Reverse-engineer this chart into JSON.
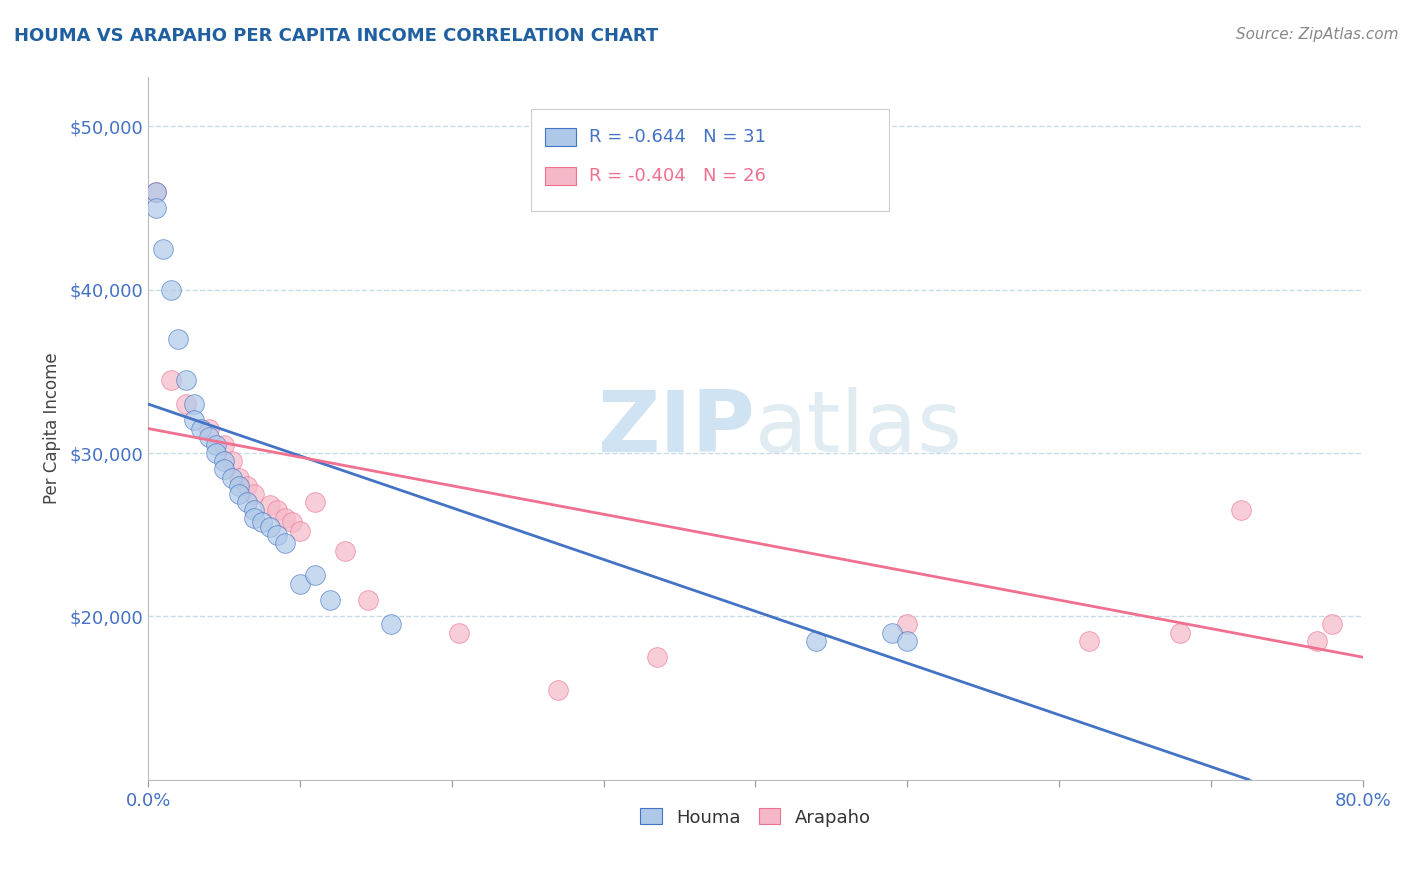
{
  "title": "HOUMA VS ARAPAHO PER CAPITA INCOME CORRELATION CHART",
  "source": "Source: ZipAtlas.com",
  "ylabel": "Per Capita Income",
  "xlim": [
    0.0,
    0.8
  ],
  "ylim": [
    10000,
    53000
  ],
  "yticks": [
    20000,
    30000,
    40000,
    50000
  ],
  "ytick_labels": [
    "$20,000",
    "$30,000",
    "$40,000",
    "$50,000"
  ],
  "houma_color": "#aec9e8",
  "arapaho_color": "#f5b8c8",
  "houma_line_color": "#4472c4",
  "arapaho_line_color": "#f07090",
  "legend_R_houma": "R = -0.644",
  "legend_N_houma": "N = 31",
  "legend_R_arapaho": "R = -0.404",
  "legend_N_arapaho": "N = 26",
  "houma_x": [
    0.005,
    0.005,
    0.01,
    0.015,
    0.02,
    0.025,
    0.03,
    0.03,
    0.035,
    0.04,
    0.045,
    0.045,
    0.05,
    0.05,
    0.055,
    0.06,
    0.06,
    0.065,
    0.07,
    0.07,
    0.075,
    0.08,
    0.085,
    0.09,
    0.1,
    0.11,
    0.12,
    0.16,
    0.44,
    0.49,
    0.5
  ],
  "houma_y": [
    46000,
    45000,
    42500,
    40000,
    37000,
    34500,
    33000,
    32000,
    31500,
    31000,
    30500,
    30000,
    29500,
    29000,
    28500,
    28000,
    27500,
    27000,
    26500,
    26000,
    25800,
    25500,
    25000,
    24500,
    22000,
    22500,
    21000,
    19500,
    18500,
    19000,
    18500
  ],
  "arapaho_x": [
    0.005,
    0.015,
    0.025,
    0.04,
    0.05,
    0.055,
    0.06,
    0.065,
    0.07,
    0.08,
    0.085,
    0.09,
    0.095,
    0.1,
    0.11,
    0.13,
    0.145,
    0.205,
    0.27,
    0.335,
    0.5,
    0.62,
    0.68,
    0.72,
    0.77,
    0.78
  ],
  "arapaho_y": [
    46000,
    34500,
    33000,
    31500,
    30500,
    29500,
    28500,
    28000,
    27500,
    26800,
    26500,
    26000,
    25800,
    25200,
    27000,
    24000,
    21000,
    19000,
    15500,
    17500,
    19500,
    18500,
    19000,
    26500,
    18500,
    19500
  ],
  "houma_trend_x0": 0.0,
  "houma_trend_y0": 33000,
  "houma_trend_x1": 0.725,
  "houma_trend_y1": 10000,
  "arapaho_trend_x0": 0.0,
  "arapaho_trend_y0": 31500,
  "arapaho_trend_x1": 0.8,
  "arapaho_trend_y1": 17500,
  "watermark_zip": "ZIP",
  "watermark_atlas": "atlas",
  "background_color": "#ffffff",
  "grid_color": "#c8dce8",
  "title_color": "#2060a0",
  "axis_color": "#4472c4",
  "marker_size": 200,
  "marker_alpha": 0.7
}
